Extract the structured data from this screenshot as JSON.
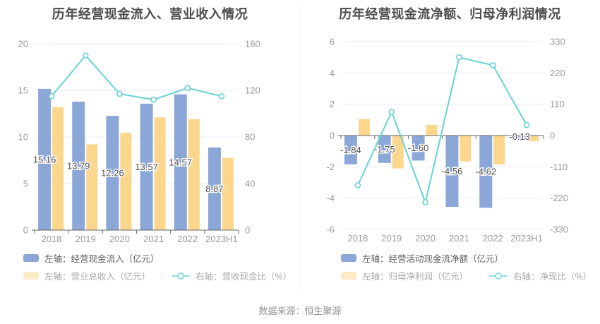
{
  "footer": {
    "source": "数据来源：恒生聚源"
  },
  "colors": {
    "bar_blue": "#8BA7D8",
    "bar_orange": "#FBD68D",
    "line_teal": "#67D2D4",
    "legend_orange_swatch": "#FDEBC7",
    "legend_line_icon": "#8DDEE0",
    "grid": "#E5ECF6",
    "axis": "#666666",
    "tick_label": "#999999",
    "data_label": "#4F4F4F",
    "title": "#4C4C4C"
  },
  "chart_data": [
    {
      "type": "combo-bar-line",
      "title": "历年经营现金流入、营业收入情况",
      "categories": [
        "2018",
        "2019",
        "2020",
        "2021",
        "2022",
        "2023H1"
      ],
      "left_axis": {
        "min": 0,
        "max": 20,
        "ticks": [
          0,
          5,
          10,
          15,
          20
        ]
      },
      "right_axis": {
        "min": 0,
        "max": 160,
        "ticks": [
          0,
          40,
          80,
          120,
          160
        ]
      },
      "grid": true,
      "legend_position": "bottom-left",
      "series": [
        {
          "name": "左轴：经营现金流入（亿元）",
          "type": "bar",
          "axis": "left",
          "color": "#8BA7D8",
          "values": [
            15.16,
            13.79,
            12.26,
            13.57,
            14.57,
            8.87
          ],
          "value_labels": [
            "15.16",
            "13.79",
            "12.26",
            "13.57",
            "14.57",
            "8.87"
          ]
        },
        {
          "name": "左轴：营业总收入（亿元）",
          "type": "bar",
          "axis": "left",
          "color": "#FBD68D",
          "values": [
            13.2,
            9.2,
            10.45,
            12.1,
            11.9,
            7.75
          ]
        },
        {
          "name": "右轴：营收现金比（%）",
          "type": "line",
          "axis": "right",
          "color": "#67D2D4",
          "values": [
            115,
            150,
            117,
            112,
            122,
            115
          ]
        }
      ]
    },
    {
      "type": "combo-bar-line",
      "title": "历年经营现金流净额、归母净利润情况",
      "categories": [
        "2018",
        "2019",
        "2020",
        "2021",
        "2022",
        "2023H1"
      ],
      "left_axis": {
        "min": -6,
        "max": 6,
        "ticks": [
          -6,
          -4,
          -2,
          0,
          2,
          4,
          6
        ]
      },
      "right_axis": {
        "min": -330,
        "max": 330,
        "ticks": [
          -330,
          -220,
          -110,
          0,
          110,
          220,
          330
        ]
      },
      "grid": true,
      "legend_position": "bottom-left",
      "series": [
        {
          "name": "左轴：经营活动现金流净额（亿元）",
          "type": "bar",
          "axis": "left",
          "color": "#8BA7D8",
          "values": [
            -1.84,
            -1.75,
            -1.6,
            -4.56,
            -4.62,
            -0.13
          ],
          "value_labels": [
            "-1.84",
            "-1.75",
            "-1.60",
            "-4.56",
            "-4.62",
            "-0.13"
          ]
        },
        {
          "name": "左轴：归母净利润（亿元）",
          "type": "bar",
          "axis": "left",
          "color": "#FBD68D",
          "values": [
            1.05,
            -2.1,
            0.68,
            -1.66,
            -1.85,
            -0.35
          ]
        },
        {
          "name": "右轴：净现比（%）",
          "type": "line",
          "axis": "right",
          "color": "#67D2D4",
          "values": [
            -175,
            83,
            -235,
            275,
            247,
            37
          ]
        }
      ]
    }
  ]
}
